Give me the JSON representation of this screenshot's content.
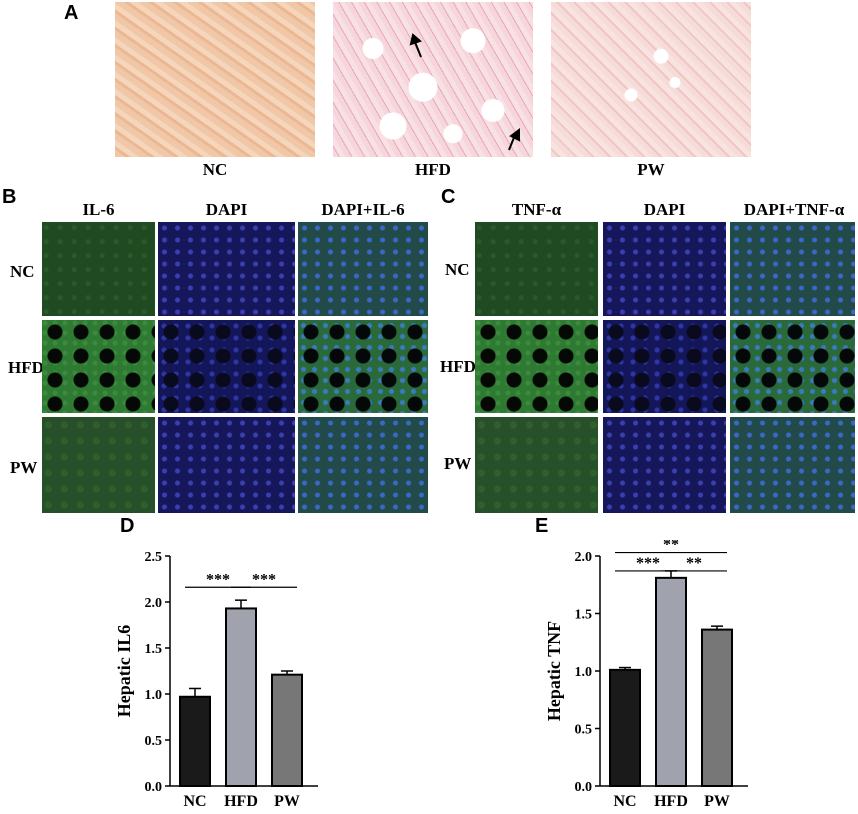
{
  "panels": {
    "a": {
      "letter": "A",
      "labels": [
        "NC",
        "HFD",
        "PW"
      ]
    },
    "b": {
      "letter": "B",
      "columns": [
        "IL-6",
        "DAPI",
        "DAPI+IL-6"
      ],
      "rows": [
        "NC",
        "HFD",
        "PW"
      ]
    },
    "c": {
      "letter": "C",
      "columns": [
        "TNF-α",
        "DAPI",
        "DAPI+TNF-α"
      ],
      "rows": [
        "NC",
        "HFD",
        "PW"
      ]
    },
    "d": {
      "letter": "D"
    },
    "e": {
      "letter": "E"
    }
  },
  "colors": {
    "nc_bar": "#1a1a1a",
    "hfd_bar": "#a0a2ad",
    "pw_bar": "#777777"
  },
  "chart_data": [
    {
      "type": "bar",
      "categories": [
        "NC",
        "HFD",
        "PW"
      ],
      "values": [
        0.97,
        1.93,
        1.21
      ],
      "errors": [
        0.09,
        0.09,
        0.04
      ],
      "xlabel": "",
      "ylabel": "Hepatic IL6",
      "ylim": [
        0,
        2.5
      ],
      "yticks": [
        "0.0",
        "0.5",
        "1.0",
        "1.5",
        "2.0",
        "2.5"
      ],
      "significance": [
        {
          "from": 0,
          "to": 1,
          "label": "***"
        },
        {
          "from": 1,
          "to": 2,
          "label": "***"
        }
      ]
    },
    {
      "type": "bar",
      "categories": [
        "NC",
        "HFD",
        "PW"
      ],
      "values": [
        1.01,
        1.81,
        1.36
      ],
      "errors": [
        0.02,
        0.06,
        0.03
      ],
      "xlabel": "",
      "ylabel": "Hepatic TNF",
      "ylim": [
        0,
        2.0
      ],
      "yticks": [
        "0.0",
        "0.5",
        "1.0",
        "1.5",
        "2.0"
      ],
      "significance": [
        {
          "from": 0,
          "to": 2,
          "label": "**"
        },
        {
          "from": 0,
          "to": 1,
          "label": "***"
        },
        {
          "from": 1,
          "to": 2,
          "label": "**"
        }
      ]
    }
  ]
}
